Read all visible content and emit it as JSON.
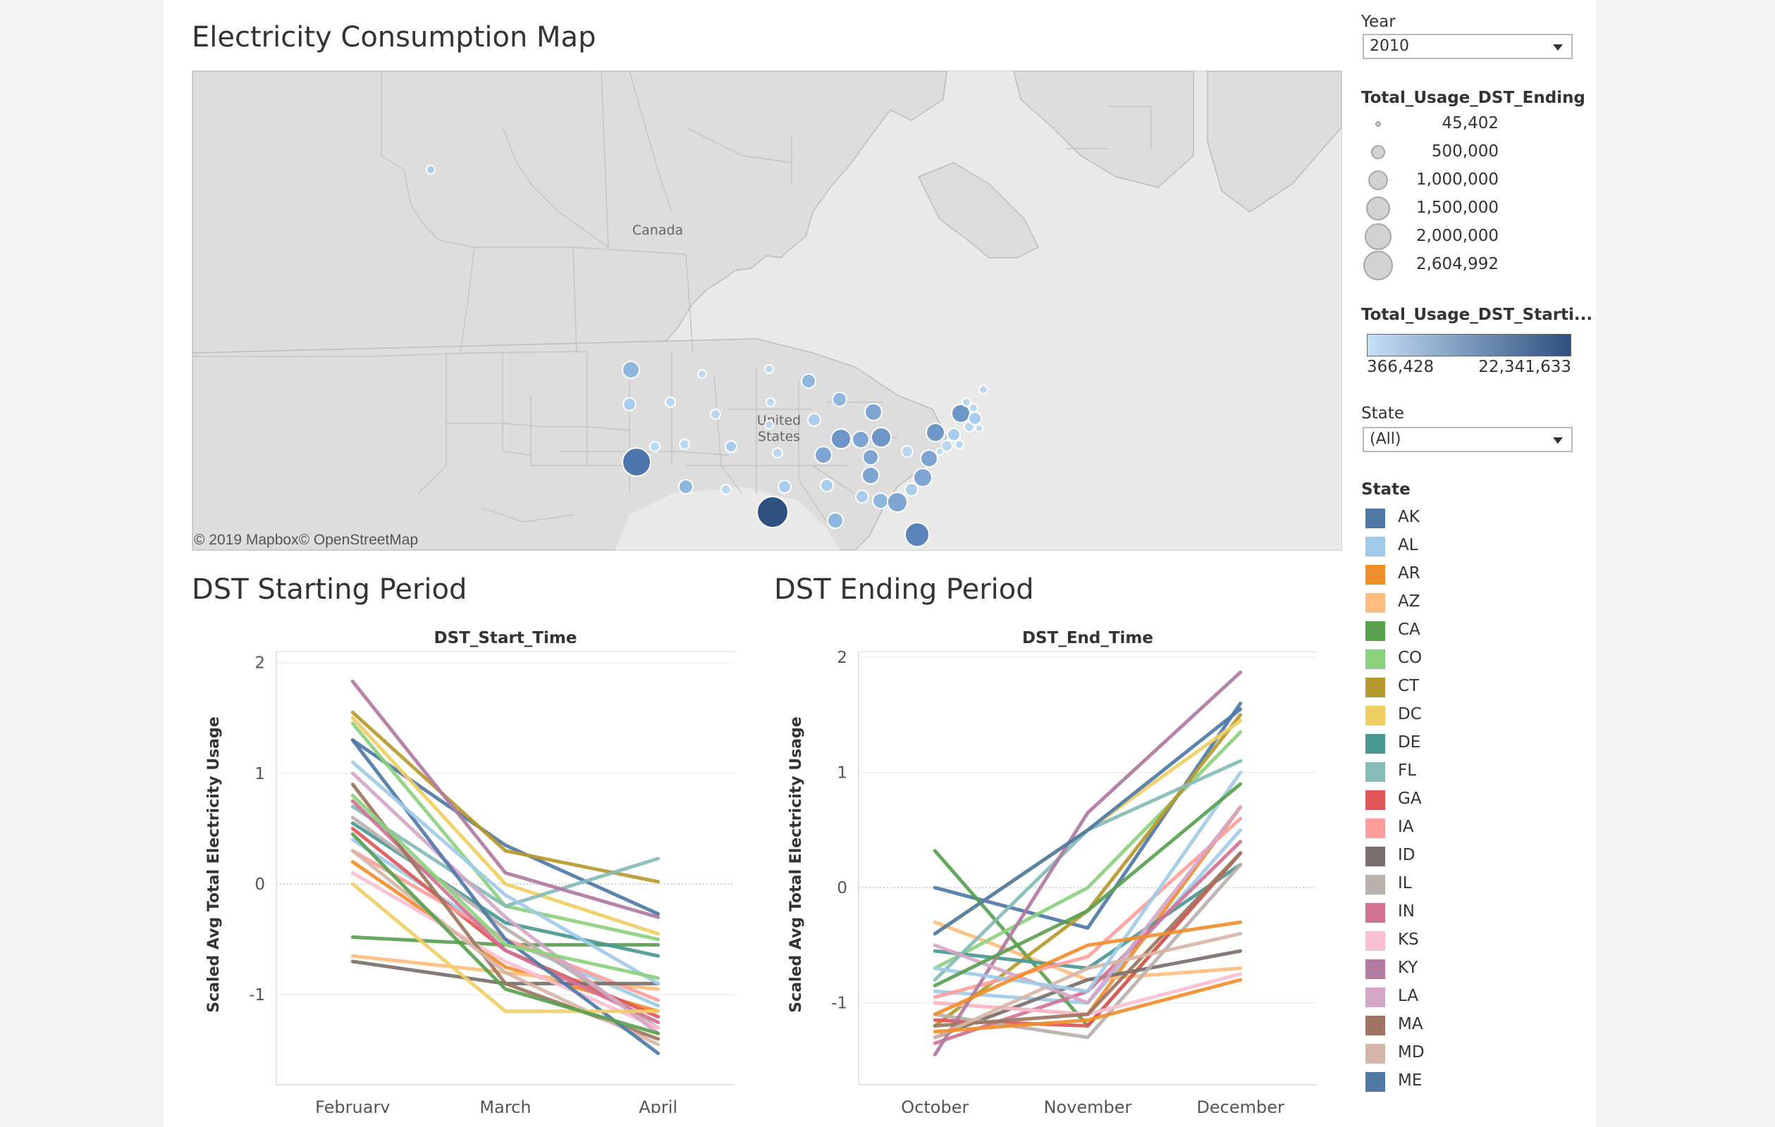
{
  "map": {
    "title": "Electricity Consumption Map",
    "country_label": "Canada",
    "us_label_line1": "United",
    "us_label_line2": "States",
    "attribution": "© 2019 Mapbox© OpenStreetMap",
    "colors": {
      "land": "#dddddd",
      "water": "#e9e9e9",
      "border": "#bcbcbc",
      "bubble_low": "#c6e0f6",
      "bubble_high": "#2f4f7f"
    }
  },
  "filters": {
    "year_label": "Year",
    "year_value": "2010",
    "state_filter_label": "State",
    "state_filter_value": "(All)"
  },
  "size_legend": {
    "title": "Total_Usage_DST_Ending",
    "values": [
      "45,402",
      "500,000",
      "1,000,000",
      "1,500,000",
      "2,000,000",
      "2,604,992"
    ]
  },
  "color_legend": {
    "title": "Total_Usage_DST_Starti...",
    "min_label": "366,428",
    "max_label": "22,341,633"
  },
  "state_legend": {
    "title": "State",
    "items": [
      {
        "label": "AK",
        "color": "#4e79a7"
      },
      {
        "label": "AL",
        "color": "#a0cbe8"
      },
      {
        "label": "AR",
        "color": "#f28e2b"
      },
      {
        "label": "AZ",
        "color": "#ffbe7d"
      },
      {
        "label": "CA",
        "color": "#59a14f"
      },
      {
        "label": "CO",
        "color": "#8cd17d"
      },
      {
        "label": "CT",
        "color": "#b6992d"
      },
      {
        "label": "DC",
        "color": "#f1ce63"
      },
      {
        "label": "DE",
        "color": "#499894"
      },
      {
        "label": "FL",
        "color": "#86bcb6"
      },
      {
        "label": "GA",
        "color": "#e15759"
      },
      {
        "label": "IA",
        "color": "#ff9d9a"
      },
      {
        "label": "ID",
        "color": "#79706e"
      },
      {
        "label": "IL",
        "color": "#bab0ac"
      },
      {
        "label": "IN",
        "color": "#d37295"
      },
      {
        "label": "KS",
        "color": "#fabfd2"
      },
      {
        "label": "KY",
        "color": "#b07aa1"
      },
      {
        "label": "LA",
        "color": "#d4a6c8"
      },
      {
        "label": "MA",
        "color": "#9d7660"
      },
      {
        "label": "MD",
        "color": "#d7b5a6"
      },
      {
        "label": "ME",
        "color": "#4e79a7"
      }
    ]
  },
  "chart_data": [
    {
      "type": "line",
      "title": "DST Starting Period",
      "header": "DST_Start_Time",
      "ylabel": "Scaled Avg Total Electricity Usage",
      "categories": [
        "February",
        "March",
        "April"
      ],
      "yticks": [
        2,
        1,
        0,
        -1
      ],
      "ylim": [
        -1.75,
        2.1
      ],
      "series": [
        {
          "values": [
            1.3,
            0.35,
            -0.27
          ],
          "color": "#4e79a7"
        },
        {
          "values": [
            0.4,
            -0.5,
            -1.1
          ],
          "color": "#a0cbe8"
        },
        {
          "values": [
            0.2,
            -0.75,
            -1.15
          ],
          "color": "#f28e2b"
        },
        {
          "values": [
            -0.65,
            -0.8,
            -0.95
          ],
          "color": "#ffbe7d"
        },
        {
          "values": [
            -0.48,
            -0.55,
            -0.55
          ],
          "color": "#59a14f"
        },
        {
          "values": [
            1.45,
            -0.2,
            -0.5
          ],
          "color": "#8cd17d"
        },
        {
          "values": [
            1.55,
            0.3,
            0.02
          ],
          "color": "#b6992d"
        },
        {
          "values": [
            1.5,
            0.0,
            -0.45
          ],
          "color": "#f1ce63"
        },
        {
          "values": [
            0.55,
            -0.35,
            -0.65
          ],
          "color": "#499894"
        },
        {
          "values": [
            0.7,
            -0.2,
            0.23
          ],
          "color": "#86bcb6"
        },
        {
          "values": [
            0.5,
            -0.6,
            -1.2
          ],
          "color": "#e15759"
        },
        {
          "values": [
            0.3,
            -0.5,
            -1.05
          ],
          "color": "#ff9d9a"
        },
        {
          "values": [
            -0.7,
            -0.9,
            -0.9
          ],
          "color": "#79706e"
        },
        {
          "values": [
            0.6,
            -0.4,
            -1.3
          ],
          "color": "#bab0ac"
        },
        {
          "values": [
            0.75,
            -0.6,
            -1.25
          ],
          "color": "#d37295"
        },
        {
          "values": [
            0.1,
            -0.7,
            -1.3
          ],
          "color": "#fabfd2"
        },
        {
          "values": [
            1.83,
            0.1,
            -0.3
          ],
          "color": "#b07aa1"
        },
        {
          "values": [
            1.0,
            -0.3,
            -1.35
          ],
          "color": "#d4a6c8"
        },
        {
          "values": [
            0.9,
            -0.9,
            -1.4
          ],
          "color": "#9d7660"
        },
        {
          "values": [
            0.3,
            -0.8,
            -1.45
          ],
          "color": "#d7b5a6"
        },
        {
          "values": [
            1.3,
            -0.5,
            -1.53
          ],
          "color": "#4e79a7"
        },
        {
          "values": [
            1.1,
            -0.1,
            -0.9
          ],
          "color": "#a0cbe8"
        },
        {
          "values": [
            0.0,
            -1.15,
            -1.15
          ],
          "color": "#f1ce63"
        },
        {
          "values": [
            0.8,
            -0.55,
            -0.85
          ],
          "color": "#8cd17d"
        },
        {
          "values": [
            0.45,
            -0.95,
            -1.35
          ],
          "color": "#59a14f"
        }
      ]
    },
    {
      "type": "line",
      "title": "DST Ending Period",
      "header": "DST_End_Time",
      "ylabel": "Scaled Avg Total Electricity Usage",
      "categories": [
        "October",
        "November",
        "December"
      ],
      "yticks": [
        2,
        1,
        0,
        -1
      ],
      "ylim": [
        -1.65,
        2.05
      ],
      "series": [
        {
          "values": [
            0.0,
            -0.35,
            1.6
          ],
          "color": "#4e79a7"
        },
        {
          "values": [
            -0.9,
            -1.0,
            0.5
          ],
          "color": "#a0cbe8"
        },
        {
          "values": [
            -1.0,
            -1.1,
            0.7
          ],
          "color": "#f28e2b"
        },
        {
          "values": [
            -0.3,
            -0.8,
            -0.7
          ],
          "color": "#ffbe7d"
        },
        {
          "values": [
            0.32,
            -1.2,
            0.3
          ],
          "color": "#59a14f"
        },
        {
          "values": [
            -0.7,
            0.0,
            1.35
          ],
          "color": "#8cd17d"
        },
        {
          "values": [
            -1.2,
            -0.2,
            1.5
          ],
          "color": "#b6992d"
        },
        {
          "values": [
            -0.4,
            0.5,
            1.45
          ],
          "color": "#f1ce63"
        },
        {
          "values": [
            -0.55,
            -0.7,
            0.2
          ],
          "color": "#499894"
        },
        {
          "values": [
            -0.8,
            0.5,
            1.1
          ],
          "color": "#86bcb6"
        },
        {
          "values": [
            -1.15,
            -1.2,
            0.3
          ],
          "color": "#e15759"
        },
        {
          "values": [
            -0.95,
            -0.6,
            0.6
          ],
          "color": "#ff9d9a"
        },
        {
          "values": [
            -1.3,
            -0.8,
            -0.55
          ],
          "color": "#79706e"
        },
        {
          "values": [
            -1.1,
            -1.3,
            0.2
          ],
          "color": "#bab0ac"
        },
        {
          "values": [
            -1.35,
            -0.9,
            0.4
          ],
          "color": "#d37295"
        },
        {
          "values": [
            -1.0,
            -1.1,
            -0.75
          ],
          "color": "#fabfd2"
        },
        {
          "values": [
            -1.45,
            0.65,
            1.87
          ],
          "color": "#b07aa1"
        },
        {
          "values": [
            -0.5,
            -1.0,
            0.7
          ],
          "color": "#d4a6c8"
        },
        {
          "values": [
            -1.2,
            -1.1,
            0.3
          ],
          "color": "#9d7660"
        },
        {
          "values": [
            -1.3,
            -0.7,
            -0.4
          ],
          "color": "#d7b5a6"
        },
        {
          "values": [
            -0.4,
            0.5,
            1.55
          ],
          "color": "#4e79a7"
        },
        {
          "values": [
            -0.7,
            -0.9,
            1.0
          ],
          "color": "#a0cbe8"
        },
        {
          "values": [
            -1.1,
            -0.5,
            -0.3
          ],
          "color": "#f28e2b"
        },
        {
          "values": [
            -0.85,
            -0.2,
            0.9
          ],
          "color": "#59a14f"
        },
        {
          "values": [
            -1.25,
            -1.15,
            -0.8
          ],
          "color": "#f28e2b"
        }
      ]
    }
  ]
}
